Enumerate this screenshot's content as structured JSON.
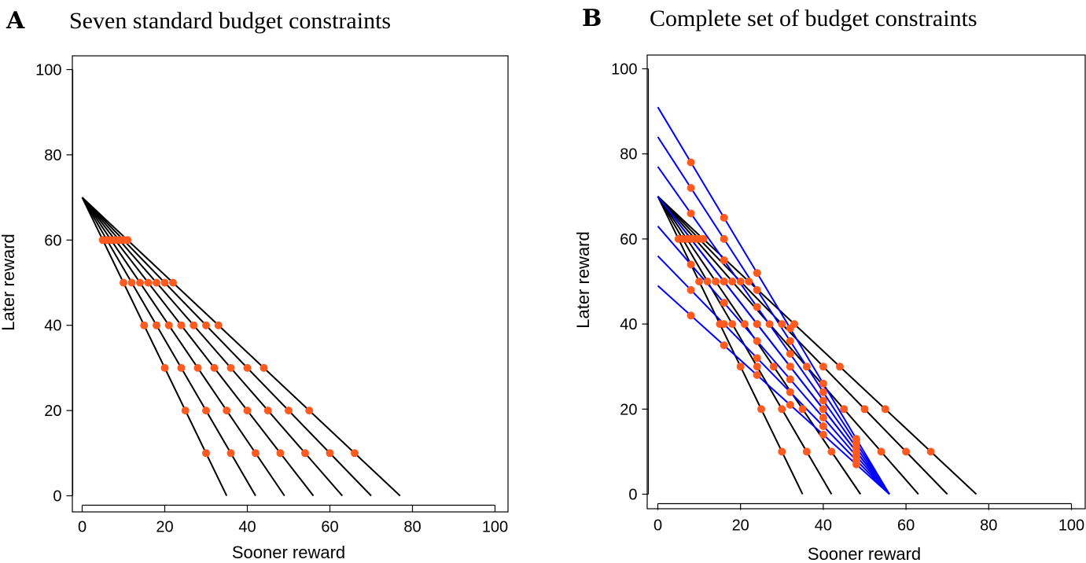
{
  "colors": {
    "standard_line": "#000000",
    "extra_line": "#0000ff",
    "point": "#ff5a1f"
  },
  "chart_data": [
    {
      "type": "line",
      "panel_letter": "A",
      "title": "Seven standard budget constraints",
      "xlabel": "Sooner reward",
      "ylabel": "Later reward",
      "xlim": [
        0,
        100
      ],
      "ylim": [
        0,
        100
      ],
      "xticks": [
        0,
        20,
        40,
        60,
        80,
        100
      ],
      "yticks": [
        0,
        20,
        40,
        60,
        80,
        100
      ],
      "standard_constraints": [
        {
          "x": [
            0,
            35
          ],
          "y": [
            70,
            0
          ]
        },
        {
          "x": [
            0,
            42
          ],
          "y": [
            70,
            0
          ]
        },
        {
          "x": [
            0,
            49
          ],
          "y": [
            70,
            0
          ]
        },
        {
          "x": [
            0,
            56
          ],
          "y": [
            70,
            0
          ]
        },
        {
          "x": [
            0,
            63
          ],
          "y": [
            70,
            0
          ]
        },
        {
          "x": [
            0,
            70
          ],
          "y": [
            70,
            0
          ]
        },
        {
          "x": [
            0,
            77
          ],
          "y": [
            70,
            0
          ]
        }
      ],
      "extra_constraints": [],
      "points": [
        [
          5,
          60
        ],
        [
          6,
          60
        ],
        [
          7,
          60
        ],
        [
          8,
          60
        ],
        [
          9,
          60
        ],
        [
          10,
          60
        ],
        [
          11,
          60
        ],
        [
          10,
          50
        ],
        [
          12,
          50
        ],
        [
          14,
          50
        ],
        [
          16,
          50
        ],
        [
          18,
          50
        ],
        [
          20,
          50
        ],
        [
          22,
          50
        ],
        [
          15,
          40
        ],
        [
          18,
          40
        ],
        [
          21,
          40
        ],
        [
          24,
          40
        ],
        [
          27,
          40
        ],
        [
          30,
          40
        ],
        [
          33,
          40
        ],
        [
          20,
          30
        ],
        [
          24,
          30
        ],
        [
          28,
          30
        ],
        [
          32,
          30
        ],
        [
          36,
          30
        ],
        [
          40,
          30
        ],
        [
          44,
          30
        ],
        [
          25,
          20
        ],
        [
          30,
          20
        ],
        [
          35,
          20
        ],
        [
          40,
          20
        ],
        [
          45,
          20
        ],
        [
          50,
          20
        ],
        [
          55,
          20
        ],
        [
          30,
          10
        ],
        [
          36,
          10
        ],
        [
          42,
          10
        ],
        [
          48,
          10
        ],
        [
          54,
          10
        ],
        [
          60,
          10
        ],
        [
          66,
          10
        ]
      ]
    },
    {
      "type": "line",
      "panel_letter": "B",
      "title": "Complete set of budget constraints",
      "xlabel": "Sooner reward",
      "ylabel": "Later reward",
      "xlim": [
        0,
        100
      ],
      "ylim": [
        0,
        100
      ],
      "xticks": [
        0,
        20,
        40,
        60,
        80,
        100
      ],
      "yticks": [
        0,
        20,
        40,
        60,
        80,
        100
      ],
      "standard_constraints": [
        {
          "x": [
            0,
            35
          ],
          "y": [
            70,
            0
          ]
        },
        {
          "x": [
            0,
            42
          ],
          "y": [
            70,
            0
          ]
        },
        {
          "x": [
            0,
            49
          ],
          "y": [
            70,
            0
          ]
        },
        {
          "x": [
            0,
            56
          ],
          "y": [
            70,
            0
          ]
        },
        {
          "x": [
            0,
            63
          ],
          "y": [
            70,
            0
          ]
        },
        {
          "x": [
            0,
            70
          ],
          "y": [
            70,
            0
          ]
        },
        {
          "x": [
            0,
            77
          ],
          "y": [
            70,
            0
          ]
        }
      ],
      "extra_constraints": [
        {
          "x": [
            0,
            56
          ],
          "y": [
            91,
            0
          ]
        },
        {
          "x": [
            0,
            56
          ],
          "y": [
            84,
            0
          ]
        },
        {
          "x": [
            0,
            56
          ],
          "y": [
            77,
            0
          ]
        },
        {
          "x": [
            0,
            56
          ],
          "y": [
            70,
            0
          ]
        },
        {
          "x": [
            0,
            56
          ],
          "y": [
            63,
            0
          ]
        },
        {
          "x": [
            0,
            56
          ],
          "y": [
            56,
            0
          ]
        },
        {
          "x": [
            0,
            56
          ],
          "y": [
            49,
            0
          ]
        }
      ],
      "points": [
        [
          5,
          60
        ],
        [
          6,
          60
        ],
        [
          7,
          60
        ],
        [
          8,
          60
        ],
        [
          9,
          60
        ],
        [
          10,
          60
        ],
        [
          11,
          60
        ],
        [
          10,
          50
        ],
        [
          12,
          50
        ],
        [
          14,
          50
        ],
        [
          16,
          50
        ],
        [
          18,
          50
        ],
        [
          20,
          50
        ],
        [
          22,
          50
        ],
        [
          15,
          40
        ],
        [
          18,
          40
        ],
        [
          21,
          40
        ],
        [
          24,
          40
        ],
        [
          27,
          40
        ],
        [
          30,
          40
        ],
        [
          33,
          40
        ],
        [
          20,
          30
        ],
        [
          24,
          30
        ],
        [
          28,
          30
        ],
        [
          32,
          30
        ],
        [
          36,
          30
        ],
        [
          40,
          30
        ],
        [
          44,
          30
        ],
        [
          25,
          20
        ],
        [
          30,
          20
        ],
        [
          35,
          20
        ],
        [
          40,
          20
        ],
        [
          45,
          20
        ],
        [
          50,
          20
        ],
        [
          55,
          20
        ],
        [
          30,
          10
        ],
        [
          36,
          10
        ],
        [
          42,
          10
        ],
        [
          48,
          10
        ],
        [
          54,
          10
        ],
        [
          60,
          10
        ],
        [
          66,
          10
        ],
        [
          8,
          78
        ],
        [
          16,
          65
        ],
        [
          24,
          52
        ],
        [
          32,
          39
        ],
        [
          40,
          26
        ],
        [
          48,
          13
        ],
        [
          8,
          72
        ],
        [
          16,
          60
        ],
        [
          24,
          48
        ],
        [
          32,
          36
        ],
        [
          40,
          24
        ],
        [
          48,
          12
        ],
        [
          8,
          66
        ],
        [
          16,
          55
        ],
        [
          24,
          44
        ],
        [
          32,
          33
        ],
        [
          40,
          22
        ],
        [
          48,
          11
        ],
        [
          8,
          60
        ],
        [
          16,
          50
        ],
        [
          24,
          40
        ],
        [
          32,
          30
        ],
        [
          40,
          20
        ],
        [
          48,
          10
        ],
        [
          8,
          54
        ],
        [
          16,
          45
        ],
        [
          24,
          36
        ],
        [
          32,
          27
        ],
        [
          40,
          18
        ],
        [
          48,
          9
        ],
        [
          8,
          48
        ],
        [
          16,
          40
        ],
        [
          24,
          32
        ],
        [
          32,
          24
        ],
        [
          40,
          16
        ],
        [
          48,
          8
        ],
        [
          8,
          42
        ],
        [
          16,
          35
        ],
        [
          24,
          28
        ],
        [
          32,
          21
        ],
        [
          40,
          14
        ],
        [
          48,
          7
        ]
      ]
    }
  ]
}
